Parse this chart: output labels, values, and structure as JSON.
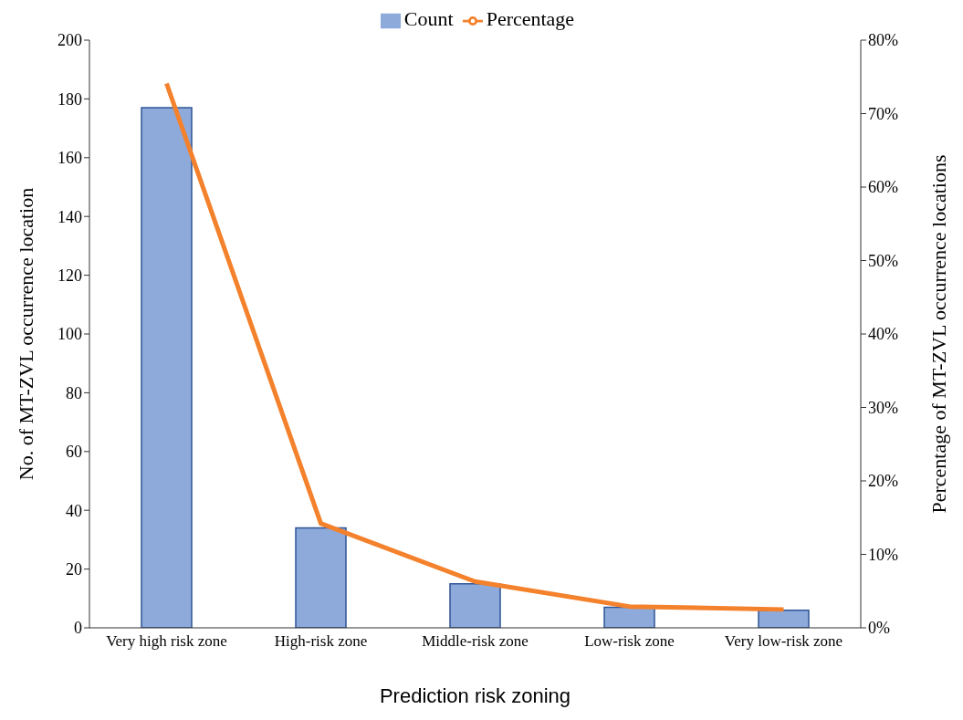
{
  "chart_data": {
    "type": "bar",
    "xlabel": "Prediction risk zoning",
    "ylabel": "No. of MT-ZVL occurrence location",
    "y2label": "Percentage of MT-ZVL occurrence locations",
    "categories": [
      "Very high risk zone",
      "High-risk zone",
      "Middle-risk zone",
      "Low-risk zone",
      "Very low-risk zone"
    ],
    "series": [
      {
        "name": "Count",
        "color": "#8eaadb",
        "values": [
          177,
          34,
          15,
          7,
          6
        ]
      },
      {
        "name": "Percentage",
        "type": "line",
        "axis": "y2",
        "color": "#f4812b",
        "values": [
          74.1,
          14.2,
          6.3,
          2.9,
          2.5
        ]
      }
    ],
    "ylim": [
      0,
      200
    ],
    "yticks": [
      0,
      20,
      40,
      60,
      80,
      100,
      120,
      140,
      160,
      180,
      200
    ],
    "y2lim": [
      0,
      80
    ],
    "y2ticks": [
      {
        "value": 0,
        "label": "0%"
      },
      {
        "value": 10,
        "label": "10%"
      },
      {
        "value": 20,
        "label": "20%"
      },
      {
        "value": 30,
        "label": "30%"
      },
      {
        "value": 40,
        "label": "40%"
      },
      {
        "value": 50,
        "label": "50%"
      },
      {
        "value": 60,
        "label": "60%"
      },
      {
        "value": 70,
        "label": "70%"
      },
      {
        "value": 80,
        "label": "80%"
      }
    ],
    "grid": false,
    "legend": "top",
    "marker": "none",
    "line_style": "solid"
  }
}
